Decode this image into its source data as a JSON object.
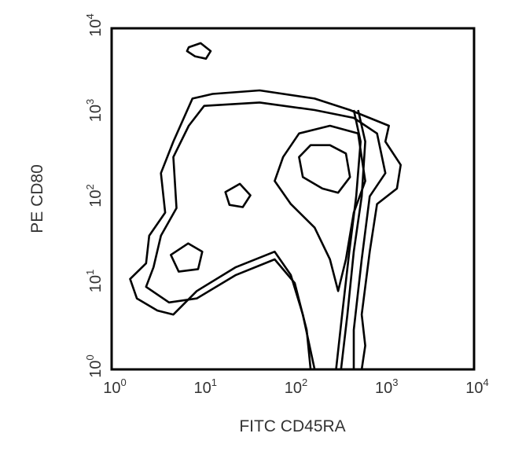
{
  "chart_data": {
    "type": "contour",
    "title": "",
    "xlabel": "FITC CD45RA",
    "ylabel": "PE CD80",
    "xscale": "log",
    "yscale": "log",
    "xlim": [
      1,
      10000
    ],
    "ylim": [
      1,
      10000
    ],
    "xticks": [
      {
        "base": "10",
        "exp": "0"
      },
      {
        "base": "10",
        "exp": "1"
      },
      {
        "base": "10",
        "exp": "2"
      },
      {
        "base": "10",
        "exp": "3"
      },
      {
        "base": "10",
        "exp": "4"
      }
    ],
    "yticks": [
      {
        "base": "10",
        "exp": "0"
      },
      {
        "base": "10",
        "exp": "1"
      },
      {
        "base": "10",
        "exp": "2"
      },
      {
        "base": "10",
        "exp": "3"
      },
      {
        "base": "10",
        "exp": "4"
      }
    ],
    "grid": false,
    "line_color": "#000000",
    "contours": [
      {
        "closed": true,
        "points": [
          [
            174,
            1
          ],
          [
            129,
            4.4
          ],
          [
            95,
            12.8
          ],
          [
            63,
            24
          ],
          [
            23.5,
            15.8
          ],
          [
            8.7,
            8.3
          ],
          [
            4.8,
            4.4
          ],
          [
            3.2,
            4.9
          ],
          [
            1.9,
            6.8
          ],
          [
            1.6,
            11.5
          ],
          [
            2.4,
            17.5
          ],
          [
            2.6,
            37
          ],
          [
            3.9,
            69
          ],
          [
            3.5,
            200
          ],
          [
            4.8,
            470
          ],
          [
            7.8,
            1500
          ],
          [
            13,
            1700
          ],
          [
            43,
            1870
          ],
          [
            174,
            1500
          ],
          [
            427,
            1100
          ],
          [
            1150,
            720
          ],
          [
            1050,
            470
          ],
          [
            1550,
            250
          ],
          [
            1410,
            132
          ],
          [
            850,
            87
          ],
          [
            705,
            24
          ],
          [
            575,
            4.4
          ],
          [
            630,
            1.9
          ],
          [
            575,
            1
          ]
        ]
      },
      {
        "closed": true,
        "points": [
          [
            157,
            1
          ],
          [
            142,
            2.9
          ],
          [
            105,
            10.3
          ],
          [
            63,
            19.5
          ],
          [
            23.5,
            12.8
          ],
          [
            8.7,
            6.8
          ],
          [
            4.3,
            6.1
          ],
          [
            2.4,
            9.3
          ],
          [
            2.9,
            15.8
          ],
          [
            3.5,
            37
          ],
          [
            5.2,
            78
          ],
          [
            4.8,
            309
          ],
          [
            7.1,
            720
          ],
          [
            10.5,
            1230
          ],
          [
            43,
            1350
          ],
          [
            174,
            1100
          ],
          [
            470,
            890
          ],
          [
            850,
            585
          ],
          [
            1050,
            200
          ],
          [
            705,
            107
          ],
          [
            575,
            19.5
          ],
          [
            470,
            2.9
          ],
          [
            470,
            1
          ]
        ]
      },
      {
        "closed": true,
        "points": [
          [
            78,
            309
          ],
          [
            117,
            585
          ],
          [
            257,
            720
          ],
          [
            525,
            585
          ],
          [
            630,
            162
          ],
          [
            470,
            69
          ],
          [
            385,
            19.5
          ],
          [
            316,
            8.3
          ],
          [
            257,
            19.5
          ],
          [
            174,
            46
          ],
          [
            95,
            87
          ],
          [
            63,
            162
          ]
        ]
      },
      {
        "closed": true,
        "points": [
          [
            117,
            309
          ],
          [
            157,
            426
          ],
          [
            257,
            426
          ],
          [
            385,
            340
          ],
          [
            427,
            180
          ],
          [
            316,
            118
          ],
          [
            212,
            132
          ],
          [
            129,
            180
          ]
        ]
      },
      {
        "closed": true,
        "points": [
          [
            7.1,
            6000
          ],
          [
            9.6,
            6700
          ],
          [
            12.4,
            5400
          ],
          [
            11,
            4400
          ],
          [
            8.3,
            4700
          ],
          [
            6.8,
            5400
          ]
        ]
      },
      {
        "closed": true,
        "points": [
          [
            4.5,
            22
          ],
          [
            7,
            30
          ],
          [
            10,
            24
          ],
          [
            9,
            15
          ],
          [
            5.5,
            14
          ]
        ]
      },
      {
        "closed": true,
        "points": [
          [
            18,
            120
          ],
          [
            26,
            150
          ],
          [
            34,
            110
          ],
          [
            28,
            80
          ],
          [
            20,
            85
          ]
        ]
      },
      {
        "closed": false,
        "points": [
          [
            525,
            1100
          ],
          [
            630,
            470
          ],
          [
            575,
            107
          ],
          [
            470,
            24
          ],
          [
            400,
            4.4
          ],
          [
            340,
            1
          ]
        ]
      },
      {
        "closed": false,
        "points": [
          [
            470,
            1100
          ],
          [
            560,
            470
          ],
          [
            500,
            107
          ],
          [
            420,
            24
          ],
          [
            350,
            4.4
          ],
          [
            300,
            1
          ]
        ]
      }
    ]
  }
}
